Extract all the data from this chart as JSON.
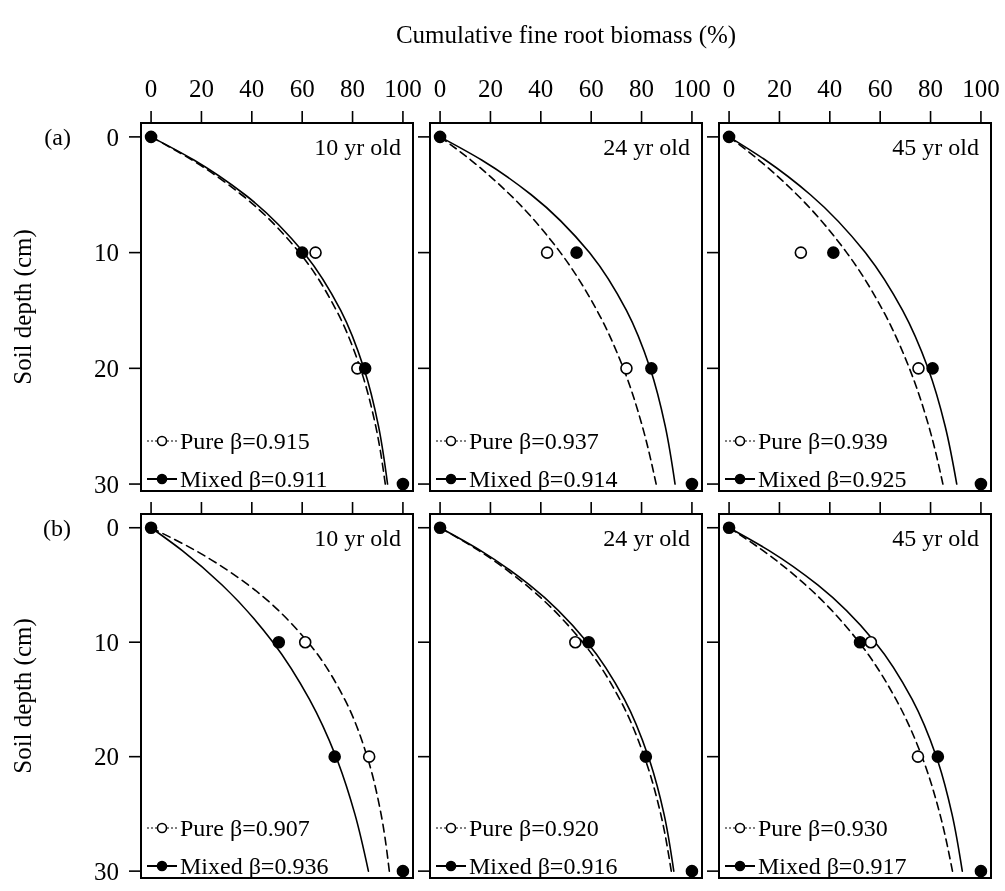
{
  "chart_data": [
    {
      "type": "scatter",
      "ylabel": "Soil depth (cm)",
      "annotations": [
        "10 yr old",
        "(a)"
      ],
      "xlim": [
        -4,
        104
      ],
      "xticks": [
        0,
        20,
        40,
        60,
        80,
        100
      ],
      "ylim": [
        30.6,
        -1.2
      ],
      "yticks": [
        0,
        10,
        20,
        30
      ],
      "legend": "bottom left",
      "grid": false,
      "series": [
        {
          "type": "line",
          "color": "#000000",
          "line_style": "dashed",
          "x": [
            0,
            16.3,
            35.9,
            58.9,
            73.6,
            83.1,
            89.2,
            93.0
          ],
          "values": [
            0,
            2,
            5,
            10,
            15,
            20,
            25,
            30
          ]
        },
        {
          "type": "line",
          "color": "#000000",
          "line_style": "solid",
          "x": [
            0,
            17.0,
            37.3,
            60.6,
            75.3,
            84.5,
            90.3,
            93.9
          ],
          "values": [
            0,
            2,
            5,
            10,
            15,
            20,
            25,
            30
          ]
        },
        {
          "type": "scatter",
          "name": "Pure β=0.915",
          "color": "#ffffff",
          "marker": "circle",
          "line_style": "dotted",
          "x": [
            65.3,
            81.9
          ],
          "values": [
            10,
            20
          ]
        },
        {
          "type": "scatter",
          "name": "Mixed β=0.911",
          "color": "#000000",
          "marker": "circle",
          "line_style": "solid",
          "x": [
            0,
            60.0,
            85.0,
            100
          ],
          "values": [
            0,
            10,
            20,
            30
          ]
        }
      ]
    },
    {
      "type": "scatter",
      "xlabel": "Cumulative fine root biomass (%)",
      "annotations": [
        "24 yr old"
      ],
      "xlim": [
        -4,
        104
      ],
      "xticks": [
        0,
        20,
        40,
        60,
        80,
        100
      ],
      "ylim": [
        30.6,
        -1.2
      ],
      "yticks": [
        0,
        10,
        20,
        30
      ],
      "tick_labels": "x",
      "legend": "bottom left",
      "grid": false,
      "series": [
        {
          "type": "line",
          "color": "#000000",
          "line_style": "dashed",
          "x": [
            0,
            12.2,
            27.8,
            47.8,
            62.3,
            72.8,
            80.3,
            85.8
          ],
          "values": [
            0,
            2,
            5,
            10,
            15,
            20,
            25,
            30
          ]
        },
        {
          "type": "line",
          "color": "#000000",
          "line_style": "solid",
          "x": [
            0,
            16.5,
            36.2,
            59.3,
            74.0,
            83.4,
            89.4,
            93.3
          ],
          "values": [
            0,
            2,
            5,
            10,
            15,
            20,
            25,
            30
          ]
        },
        {
          "type": "scatter",
          "name": "Pure β=0.937",
          "color": "#ffffff",
          "marker": "circle",
          "line_style": "dotted",
          "x": [
            42.5,
            74.0
          ],
          "values": [
            10,
            20
          ]
        },
        {
          "type": "scatter",
          "name": "Mixed β=0.914",
          "color": "#000000",
          "marker": "circle",
          "line_style": "solid",
          "x": [
            0,
            54.2,
            83.9,
            100
          ],
          "values": [
            0,
            10,
            20,
            30
          ]
        }
      ]
    },
    {
      "type": "scatter",
      "annotations": [
        "45 yr old"
      ],
      "xlim": [
        -4,
        104
      ],
      "xticks": [
        0,
        20,
        40,
        60,
        80,
        100
      ],
      "ylim": [
        30.6,
        -1.2
      ],
      "yticks": [
        0,
        10,
        20,
        30
      ],
      "tick_labels": "x",
      "legend": "bottom left",
      "grid": false,
      "series": [
        {
          "type": "line",
          "color": "#000000",
          "line_style": "dashed",
          "x": [
            0,
            11.8,
            27.0,
            46.7,
            61.1,
            71.6,
            79.3,
            84.9
          ],
          "values": [
            0,
            2,
            5,
            10,
            15,
            20,
            25,
            30
          ]
        },
        {
          "type": "line",
          "color": "#000000",
          "line_style": "solid",
          "x": [
            0,
            14.4,
            32.3,
            54.1,
            68.9,
            79.0,
            85.8,
            90.4
          ],
          "values": [
            0,
            2,
            5,
            10,
            15,
            20,
            25,
            30
          ]
        },
        {
          "type": "scatter",
          "name": "Pure β=0.939",
          "color": "#ffffff",
          "marker": "circle",
          "line_style": "dotted",
          "x": [
            28.5,
            75.2
          ],
          "values": [
            10,
            20
          ]
        },
        {
          "type": "scatter",
          "name": "Mixed β=0.925",
          "color": "#000000",
          "marker": "circle",
          "line_style": "solid",
          "x": [
            0,
            41.4,
            80.8,
            100
          ],
          "values": [
            0,
            10,
            20,
            30
          ]
        }
      ]
    },
    {
      "type": "scatter",
      "ylabel": "Soil depth (cm)",
      "annotations": [
        "10 yr old",
        "(b)"
      ],
      "xlim": [
        -4,
        104
      ],
      "xticks": [
        0,
        20,
        40,
        60,
        80,
        100
      ],
      "ylim": [
        30.6,
        -1.2
      ],
      "yticks": [
        0,
        10,
        20,
        30
      ],
      "tick_labels": "y",
      "legend": "bottom left",
      "grid": false,
      "series": [
        {
          "type": "line",
          "color": "#000000",
          "line_style": "dashed",
          "x": [
            0,
            17.7,
            38.6,
            62.3,
            76.9,
            85.8,
            91.3,
            94.6
          ],
          "values": [
            0,
            2,
            5,
            10,
            15,
            20,
            25,
            30
          ]
        },
        {
          "type": "line",
          "color": "#000000",
          "line_style": "solid",
          "x": [
            0,
            12.4,
            28.2,
            48.4,
            62.9,
            73.4,
            80.9,
            86.3
          ],
          "values": [
            0,
            2,
            5,
            10,
            15,
            20,
            25,
            30
          ]
        },
        {
          "type": "scatter",
          "name": "Pure β=0.907",
          "color": "#ffffff",
          "marker": "circle",
          "line_style": "dotted",
          "x": [
            61.2,
            86.6
          ],
          "values": [
            10,
            20
          ]
        },
        {
          "type": "scatter",
          "name": "Mixed β=0.936",
          "color": "#000000",
          "marker": "circle",
          "line_style": "solid",
          "x": [
            0,
            50.7,
            72.9,
            100
          ],
          "values": [
            0,
            10,
            20,
            30
          ]
        }
      ]
    },
    {
      "type": "scatter",
      "annotations": [
        "24 yr old"
      ],
      "xlim": [
        -4,
        104
      ],
      "xticks": [
        0,
        20,
        40,
        60,
        80,
        100
      ],
      "ylim": [
        30.6,
        -1.2
      ],
      "yticks": [
        0,
        10,
        20,
        30
      ],
      "tick_labels": false,
      "legend": "bottom left",
      "grid": false,
      "series": [
        {
          "type": "line",
          "color": "#000000",
          "line_style": "dashed",
          "x": [
            0,
            15.4,
            34.1,
            56.6,
            71.4,
            81.1,
            87.6,
            91.8
          ],
          "values": [
            0,
            2,
            5,
            10,
            15,
            20,
            25,
            30
          ]
        },
        {
          "type": "line",
          "color": "#000000",
          "line_style": "solid",
          "x": [
            0,
            16.1,
            35.5,
            58.4,
            73.2,
            82.7,
            88.9,
            92.8
          ],
          "values": [
            0,
            2,
            5,
            10,
            15,
            20,
            25,
            30
          ]
        },
        {
          "type": "scatter",
          "name": "Pure β=0.920",
          "color": "#ffffff",
          "marker": "circle",
          "line_style": "dotted",
          "x": [
            53.7,
            null
          ],
          "values": [
            10,
            null
          ]
        },
        {
          "type": "scatter",
          "name": "Mixed β=0.916",
          "color": "#000000",
          "marker": "circle",
          "line_style": "solid",
          "x": [
            0,
            59.0,
            81.7,
            100
          ],
          "values": [
            0,
            10,
            20,
            30
          ]
        }
      ]
    },
    {
      "type": "scatter",
      "annotations": [
        "45 yr old"
      ],
      "xlim": [
        -4,
        104
      ],
      "xticks": [
        0,
        20,
        40,
        60,
        80,
        100
      ],
      "ylim": [
        30.6,
        -1.2
      ],
      "yticks": [
        0,
        10,
        20,
        30
      ],
      "tick_labels": false,
      "legend": "bottom left",
      "grid": false,
      "series": [
        {
          "type": "line",
          "color": "#000000",
          "line_style": "dashed",
          "x": [
            0,
            13.5,
            30.4,
            51.6,
            66.3,
            76.6,
            83.7,
            88.7
          ],
          "values": [
            0,
            2,
            5,
            10,
            15,
            20,
            25,
            30
          ]
        },
        {
          "type": "line",
          "color": "#000000",
          "line_style": "solid",
          "x": [
            0,
            15.9,
            35.2,
            58.0,
            72.7,
            82.3,
            88.5,
            92.6
          ],
          "values": [
            0,
            2,
            5,
            10,
            15,
            20,
            25,
            30
          ]
        },
        {
          "type": "scatter",
          "name": "Pure β=0.930",
          "color": "#ffffff",
          "marker": "circle",
          "line_style": "dotted",
          "x": [
            56.3,
            75.0
          ],
          "values": [
            10,
            20
          ]
        },
        {
          "type": "scatter",
          "name": "Mixed β=0.917",
          "color": "#000000",
          "marker": "circle",
          "line_style": "solid",
          "x": [
            0,
            52.0,
            82.9,
            100
          ],
          "values": [
            0,
            10,
            20,
            30
          ]
        }
      ]
    }
  ]
}
